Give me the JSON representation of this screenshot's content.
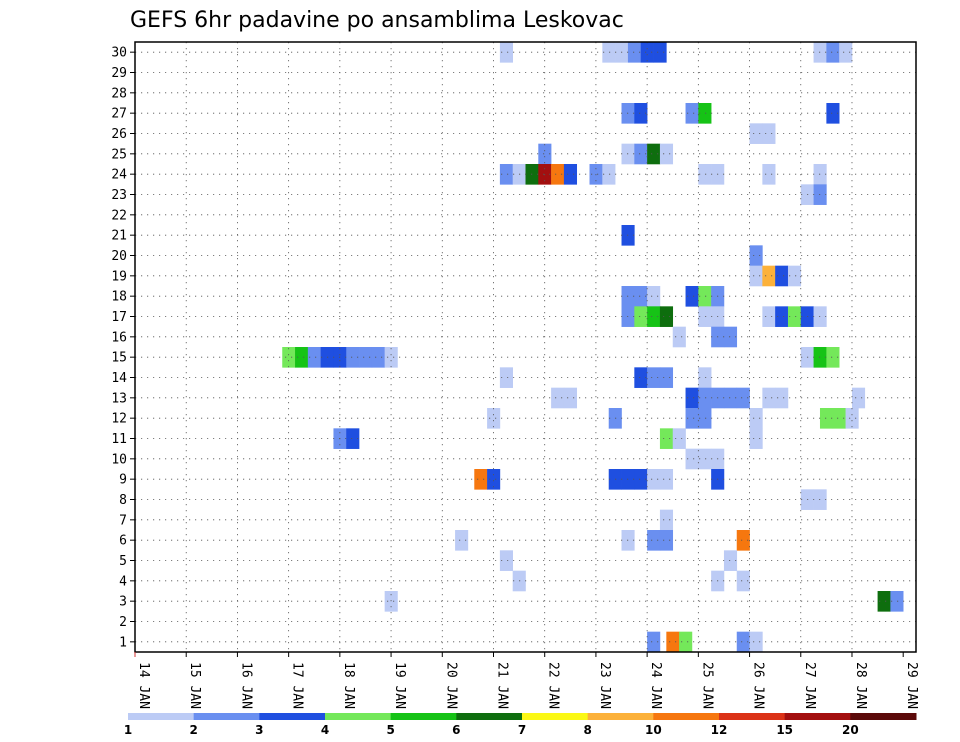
{
  "chart_data": {
    "type": "heatmap",
    "title": "GEFS 6hr padavine po ansamblima Leskovac",
    "xlabel": "",
    "ylabel": "",
    "x_tick_labels": [
      "14 JAN",
      "15 JAN",
      "16 JAN",
      "17 JAN",
      "18 JAN",
      "19 JAN",
      "20 JAN",
      "21 JAN",
      "22 JAN",
      "23 JAN",
      "24 JAN",
      "25 JAN",
      "26 JAN",
      "27 JAN",
      "28 JAN",
      "29 JAN"
    ],
    "y_tick_labels": [
      "1",
      "2",
      "3",
      "4",
      "5",
      "6",
      "7",
      "8",
      "9",
      "10",
      "11",
      "12",
      "13",
      "14",
      "15",
      "16",
      "17",
      "18",
      "19",
      "20",
      "21",
      "22",
      "23",
      "24",
      "25",
      "26",
      "27",
      "28",
      "29",
      "30"
    ],
    "x_unit": "6-hour step from 14 JAN 00Z",
    "y_unit": "ensemble member",
    "x_range": [
      0,
      61
    ],
    "y_range": [
      0.5,
      30.5
    ],
    "grid": true,
    "legend": {
      "placement": "bottom",
      "levels": [
        "1",
        "2",
        "3",
        "4",
        "5",
        "6",
        "7",
        "8",
        "10",
        "12",
        "15",
        "20"
      ],
      "colors": [
        "#bccbf5",
        "#6a8ff0",
        "#1f4fe0",
        "#74e85a",
        "#16c316",
        "#0e6e0e",
        "#fbf814",
        "#fcb13a",
        "#f6770f",
        "#db3217",
        "#a30f0f",
        "#5c0a0a"
      ]
    },
    "cells": [
      [
        29.0,
        30,
        1
      ],
      [
        37.0,
        30,
        1
      ],
      [
        38.0,
        30,
        1
      ],
      [
        39.0,
        30,
        2
      ],
      [
        40.0,
        30,
        3
      ],
      [
        41.0,
        30,
        3
      ],
      [
        53.5,
        30,
        1
      ],
      [
        54.5,
        30,
        2
      ],
      [
        55.5,
        30,
        1
      ],
      [
        38.5,
        27,
        2
      ],
      [
        39.5,
        27,
        3
      ],
      [
        43.5,
        27,
        2
      ],
      [
        44.5,
        27,
        5
      ],
      [
        54.5,
        27,
        3
      ],
      [
        48.5,
        26,
        1
      ],
      [
        49.5,
        26,
        1
      ],
      [
        32.0,
        25,
        2
      ],
      [
        38.5,
        25,
        1
      ],
      [
        39.5,
        25,
        2
      ],
      [
        40.5,
        25,
        6
      ],
      [
        41.5,
        25,
        1
      ],
      [
        29.0,
        24,
        2
      ],
      [
        30.0,
        24,
        1
      ],
      [
        31.0,
        24,
        6
      ],
      [
        32.0,
        24,
        11
      ],
      [
        33.0,
        24,
        9
      ],
      [
        34.0,
        24,
        3
      ],
      [
        36.0,
        24,
        2
      ],
      [
        37.0,
        24,
        1
      ],
      [
        44.5,
        24,
        1
      ],
      [
        45.5,
        24,
        1
      ],
      [
        49.5,
        24,
        1
      ],
      [
        53.5,
        24,
        1
      ],
      [
        52.5,
        23,
        1
      ],
      [
        53.5,
        23,
        2
      ],
      [
        38.5,
        21,
        3
      ],
      [
        48.5,
        20,
        2
      ],
      [
        48.5,
        19,
        1
      ],
      [
        49.5,
        19,
        8
      ],
      [
        50.5,
        19,
        3
      ],
      [
        51.5,
        19,
        1
      ],
      [
        38.5,
        18,
        2
      ],
      [
        39.5,
        18,
        2
      ],
      [
        40.5,
        18,
        1
      ],
      [
        43.5,
        18,
        3
      ],
      [
        44.5,
        18,
        4
      ],
      [
        45.5,
        18,
        2
      ],
      [
        38.5,
        17,
        2
      ],
      [
        39.5,
        17,
        4
      ],
      [
        40.5,
        17,
        5
      ],
      [
        41.5,
        17,
        6
      ],
      [
        44.5,
        17,
        1
      ],
      [
        45.5,
        17,
        1
      ],
      [
        49.5,
        17,
        1
      ],
      [
        50.5,
        17,
        3
      ],
      [
        51.5,
        17,
        4
      ],
      [
        52.5,
        17,
        3
      ],
      [
        53.5,
        17,
        1
      ],
      [
        42.5,
        16,
        1
      ],
      [
        45.5,
        16,
        2
      ],
      [
        46.5,
        16,
        2
      ],
      [
        12.0,
        15,
        4
      ],
      [
        13.0,
        15,
        5
      ],
      [
        14.0,
        15,
        2
      ],
      [
        15.0,
        15,
        3
      ],
      [
        16.0,
        15,
        3
      ],
      [
        17.0,
        15,
        2
      ],
      [
        18.0,
        15,
        2
      ],
      [
        19.0,
        15,
        2
      ],
      [
        20.0,
        15,
        1
      ],
      [
        52.5,
        15,
        1
      ],
      [
        53.5,
        15,
        5
      ],
      [
        54.5,
        15,
        4
      ],
      [
        29.0,
        14,
        1
      ],
      [
        39.5,
        14,
        3
      ],
      [
        40.5,
        14,
        2
      ],
      [
        41.5,
        14,
        2
      ],
      [
        44.5,
        14,
        1
      ],
      [
        33.0,
        13,
        1
      ],
      [
        34.0,
        13,
        1
      ],
      [
        43.5,
        13,
        3
      ],
      [
        44.5,
        13,
        2
      ],
      [
        45.5,
        13,
        2
      ],
      [
        46.5,
        13,
        2
      ],
      [
        47.5,
        13,
        2
      ],
      [
        49.5,
        13,
        1
      ],
      [
        50.5,
        13,
        1
      ],
      [
        56.5,
        13,
        1
      ],
      [
        28.0,
        12,
        1
      ],
      [
        37.5,
        12,
        2
      ],
      [
        43.5,
        12,
        2
      ],
      [
        44.5,
        12,
        2
      ],
      [
        48.5,
        12,
        1
      ],
      [
        54.0,
        12,
        4
      ],
      [
        55.0,
        12,
        4
      ],
      [
        56.0,
        12,
        1
      ],
      [
        16.0,
        11,
        2
      ],
      [
        17.0,
        11,
        3
      ],
      [
        41.5,
        11,
        4
      ],
      [
        42.5,
        11,
        1
      ],
      [
        48.5,
        11,
        1
      ],
      [
        43.5,
        10,
        1
      ],
      [
        44.5,
        10,
        1
      ],
      [
        45.5,
        10,
        1
      ],
      [
        27.0,
        9,
        9
      ],
      [
        28.0,
        9,
        3
      ],
      [
        37.5,
        9,
        3
      ],
      [
        38.5,
        9,
        3
      ],
      [
        39.5,
        9,
        3
      ],
      [
        40.5,
        9,
        1
      ],
      [
        41.5,
        9,
        1
      ],
      [
        45.5,
        9,
        3
      ],
      [
        52.5,
        8,
        1
      ],
      [
        53.5,
        8,
        1
      ],
      [
        41.5,
        7,
        1
      ],
      [
        25.5,
        6,
        1
      ],
      [
        38.5,
        6,
        1
      ],
      [
        40.5,
        6,
        2
      ],
      [
        41.5,
        6,
        2
      ],
      [
        47.5,
        6,
        9
      ],
      [
        29.0,
        5,
        1
      ],
      [
        46.5,
        5,
        1
      ],
      [
        30.0,
        4,
        1
      ],
      [
        45.5,
        4,
        1
      ],
      [
        47.5,
        4,
        1
      ],
      [
        20.0,
        3,
        1
      ],
      [
        58.5,
        3,
        6
      ],
      [
        59.5,
        3,
        2
      ],
      [
        40.5,
        1,
        2
      ],
      [
        42.0,
        1,
        9
      ],
      [
        43.0,
        1,
        4
      ],
      [
        47.5,
        1,
        2
      ],
      [
        48.5,
        1,
        1
      ]
    ]
  }
}
